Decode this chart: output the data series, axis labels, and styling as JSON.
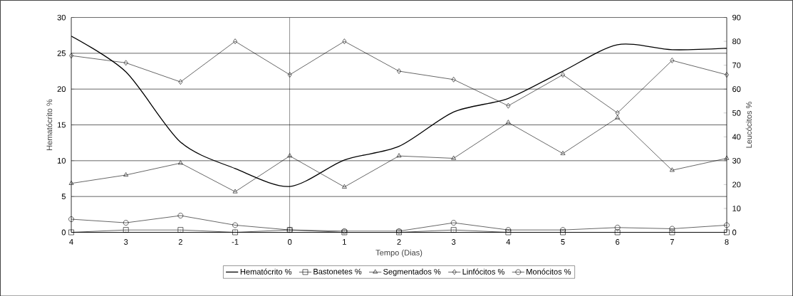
{
  "chart_data": {
    "type": "line",
    "xlabel": "Tempo (Dias)",
    "ylabel": "Hematócrito %",
    "y2label": "Leucócitos %",
    "categories": [
      "4",
      "3",
      "2",
      "-1",
      "0",
      "1",
      "2",
      "3",
      "4",
      "5",
      "6",
      "7",
      "8"
    ],
    "ylim": [
      0,
      30
    ],
    "yticks": [
      0,
      5,
      10,
      15,
      20,
      25,
      30
    ],
    "y2lim": [
      0,
      90
    ],
    "y2ticks": [
      0,
      10,
      20,
      30,
      40,
      50,
      60,
      70,
      80,
      90
    ],
    "grid": "y",
    "legend": "bottom",
    "ref_lines": [
      {
        "axis": "x",
        "value": "0",
        "color": "#000000"
      }
    ],
    "series": [
      {
        "name": "Hematócrito %",
        "color": "#000000",
        "marker": "none",
        "values": [
          27.4,
          22.4,
          12.6,
          8.9,
          6.4,
          10.1,
          12,
          16.8,
          18.7,
          22.5,
          26.2,
          25.5,
          25.7
        ]
      },
      {
        "name": "Bastonetes %",
        "color": "#000000",
        "marker": "square",
        "axis": "y2",
        "values": [
          0,
          1,
          1,
          0,
          1,
          0,
          0,
          1,
          0,
          0,
          0,
          0,
          0
        ]
      },
      {
        "name": "Segmentados %",
        "color": "#000000",
        "marker": "triangle",
        "axis": "y2",
        "values": [
          20.5,
          24,
          29,
          17,
          32,
          19,
          32,
          31,
          46,
          33,
          48,
          26,
          31
        ]
      },
      {
        "name": "Linfócitos %",
        "color": "#000000",
        "marker": "diamond",
        "axis": "y2",
        "values": [
          74,
          71,
          63,
          80,
          66,
          80,
          67.5,
          64,
          53,
          66,
          50,
          72,
          66
        ]
      },
      {
        "name": "Monócitos %",
        "color": "#000000",
        "marker": "circle",
        "axis": "y2",
        "values": [
          5.5,
          4,
          7,
          3,
          1,
          0.5,
          0.5,
          4,
          1,
          1,
          2,
          1.5,
          3
        ]
      }
    ]
  }
}
